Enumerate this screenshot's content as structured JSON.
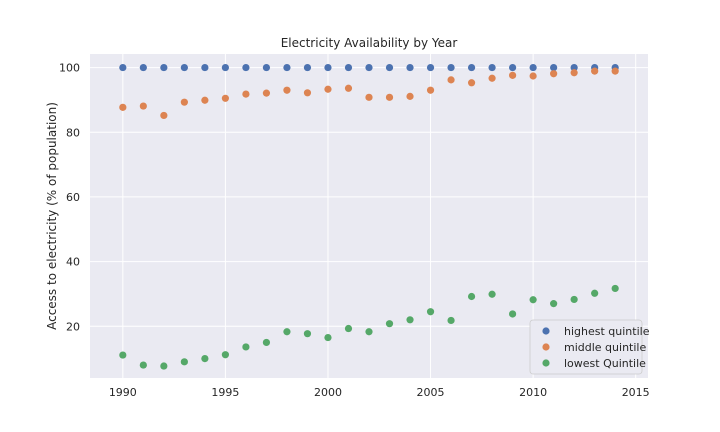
{
  "chart_data": {
    "type": "scatter",
    "title": "Electricity Availability by Year",
    "xlabel": "",
    "ylabel": "Access to electricity (% of population)",
    "xlim": [
      1988.4,
      2015.6
    ],
    "ylim": [
      4,
      104.2
    ],
    "x_ticks": [
      1990,
      1995,
      2000,
      2005,
      2010,
      2015
    ],
    "y_ticks": [
      20,
      40,
      60,
      80,
      100
    ],
    "grid": true,
    "legend_position": "lower-right",
    "x": [
      1990,
      1991,
      1992,
      1993,
      1994,
      1995,
      1996,
      1997,
      1998,
      1999,
      2000,
      2001,
      2002,
      2003,
      2004,
      2005,
      2006,
      2007,
      2008,
      2009,
      2010,
      2011,
      2012,
      2013,
      2014
    ],
    "series": [
      {
        "name": "highest quintile",
        "color": "#4c72b0",
        "values": [
          100,
          100,
          100,
          100,
          100,
          100,
          100,
          100,
          100,
          100,
          100,
          100,
          100,
          100,
          100,
          100,
          100,
          100,
          100,
          100,
          100,
          100,
          100,
          100,
          100
        ]
      },
      {
        "name": "middle quintile",
        "color": "#dd8452",
        "values": [
          87.7,
          88.1,
          85.2,
          89.3,
          89.9,
          90.5,
          91.8,
          92.1,
          93.0,
          92.2,
          93.3,
          93.6,
          90.8,
          90.8,
          91.1,
          93.0,
          96.2,
          95.3,
          96.7,
          97.6,
          97.4,
          98.1,
          98.4,
          98.9,
          98.9
        ]
      },
      {
        "name": "lowest Quintile",
        "color": "#55a868",
        "values": [
          11.1,
          8.0,
          7.7,
          9.0,
          10.0,
          11.2,
          13.6,
          15.0,
          18.3,
          17.7,
          16.5,
          19.3,
          18.3,
          20.8,
          22.0,
          24.5,
          21.8,
          29.2,
          29.9,
          23.8,
          28.2,
          27.0,
          28.3,
          30.2,
          31.7
        ]
      }
    ]
  },
  "colors": {
    "plot_background": "#eaeaf2",
    "grid": "#ffffff",
    "text": "#262626"
  }
}
